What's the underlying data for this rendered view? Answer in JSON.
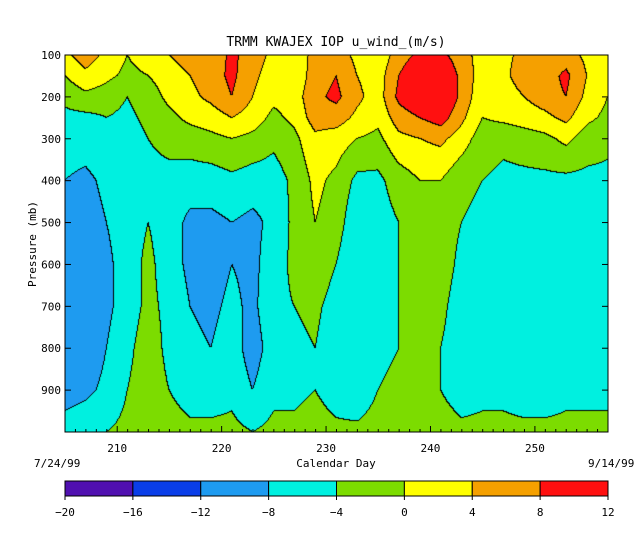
{
  "chart_data": {
    "type": "heatmap",
    "subtype": "filled-contour",
    "title": "TRMM KWAJEX IOP u_wind_(m/s)",
    "xlabel": "Calendar Day",
    "ylabel": "Pressure (mb)",
    "x_range": [
      205,
      257
    ],
    "y_range": [
      100,
      1000
    ],
    "y_reversed": true,
    "x_ticks": [
      210,
      220,
      230,
      240,
      250
    ],
    "y_ticks": [
      100,
      200,
      300,
      400,
      500,
      600,
      700,
      800,
      900
    ],
    "start_date_label": "7/24/99",
    "end_date_label": "9/14/99",
    "color_levels": [
      -20,
      -16,
      -12,
      -8,
      -4,
      0,
      4,
      8,
      12
    ],
    "colorbar_tick_labels": [
      "−20",
      "−16",
      "−12",
      "−8",
      "−4",
      "0",
      "4",
      "8",
      "12"
    ],
    "colors": [
      "#5010b0",
      "#0a3ee8",
      "#1e9bf0",
      "#00f0e0",
      "#7cdc00",
      "#ffff00",
      "#f5a000",
      "#ff1010"
    ],
    "x_days": [
      205,
      207,
      209,
      211,
      213,
      215,
      217,
      219,
      221,
      223,
      225,
      227,
      229,
      231,
      233,
      235,
      237,
      239,
      241,
      243,
      245,
      247,
      249,
      251,
      253,
      255,
      257
    ],
    "y_levels": [
      100,
      150,
      200,
      250,
      300,
      400,
      500,
      600,
      700,
      800,
      900,
      1000
    ],
    "u_wind_grid": [
      [
        3,
        6,
        3,
        0,
        2,
        4,
        6,
        5,
        9,
        6,
        3,
        2,
        5,
        6,
        3,
        1,
        6,
        9,
        9,
        6,
        2,
        3,
        5,
        4,
        6,
        3,
        2
      ],
      [
        0,
        3,
        1,
        -1,
        0,
        2,
        4,
        6,
        9,
        5,
        2,
        1,
        6,
        8,
        4,
        2,
        8,
        12,
        12,
        7,
        2,
        3,
        6,
        6,
        9,
        4,
        1
      ],
      [
        -3,
        -1,
        -2,
        -4,
        -2,
        1,
        3,
        5,
        8,
        4,
        1,
        2,
        7,
        9,
        5,
        2,
        9,
        12,
        13,
        7,
        1,
        2,
        4,
        6,
        8,
        3,
        0
      ],
      [
        -5,
        -5,
        -4,
        -5,
        -3,
        -1,
        1,
        2,
        4,
        2,
        -1,
        1,
        6,
        6,
        3,
        1,
        6,
        8,
        10,
        5,
        0,
        1,
        2,
        3,
        5,
        1,
        -1
      ],
      [
        -6,
        -6,
        -5,
        -6,
        -4,
        -3,
        -2,
        -1,
        0,
        -1,
        -3,
        -1,
        3,
        2,
        0,
        -1,
        3,
        4,
        5,
        2,
        -2,
        -3,
        -2,
        -1,
        1,
        -2,
        -3
      ],
      [
        -8,
        -9,
        -7,
        -6,
        -5,
        -5,
        -6,
        -6,
        -5,
        -6,
        -6,
        -3,
        1,
        -1,
        -5,
        -5,
        -2,
        0,
        0,
        -3,
        -4,
        -5,
        -5,
        -5,
        -5,
        -5,
        -5
      ],
      [
        -9,
        -10,
        -8,
        -6,
        -4,
        -6,
        -9,
        -9,
        -8,
        -9,
        -7,
        -3,
        0,
        -2,
        -7,
        -6,
        -4,
        -2,
        -2,
        -4,
        -5,
        -6,
        -6,
        -7,
        -6,
        -6,
        -7
      ],
      [
        -10,
        -11,
        -9,
        -6,
        -3,
        -6,
        -9,
        -10,
        -8,
        -9,
        -6,
        -3,
        -1,
        -4,
        -8,
        -6,
        -4,
        -3,
        -2,
        -5,
        -5,
        -6,
        -6,
        -7,
        -6,
        -6,
        -6
      ],
      [
        -11,
        -12,
        -9,
        -6,
        -3,
        -5,
        -8,
        -9,
        -7,
        -9,
        -5,
        -4,
        -3,
        -6,
        -8,
        -5,
        -4,
        -3,
        -3,
        -6,
        -6,
        -6,
        -6,
        -6,
        -6,
        -5,
        -5
      ],
      [
        -12,
        -11,
        -8,
        -5,
        -2,
        -5,
        -7,
        -8,
        -6,
        -10,
        -6,
        -5,
        -4,
        -7,
        -8,
        -5,
        -4,
        -3,
        -4,
        -6,
        -6,
        -5,
        -6,
        -6,
        -6,
        -5,
        -5
      ],
      [
        -10,
        -9,
        -7,
        -4,
        -2,
        -4,
        -6,
        -6,
        -5,
        -8,
        -5,
        -5,
        -4,
        -6,
        -7,
        -4,
        -3,
        -3,
        -4,
        -6,
        -5,
        -5,
        -6,
        -6,
        -5,
        -5,
        -5
      ],
      [
        -6,
        -5,
        -4,
        -3,
        -2,
        -2,
        -3,
        -3,
        -3,
        -4,
        -3,
        -3,
        -2,
        -3,
        -3,
        -2,
        -2,
        -2,
        -2,
        -3,
        -3,
        -3,
        -3,
        -3,
        -3,
        -3,
        -3
      ]
    ]
  }
}
